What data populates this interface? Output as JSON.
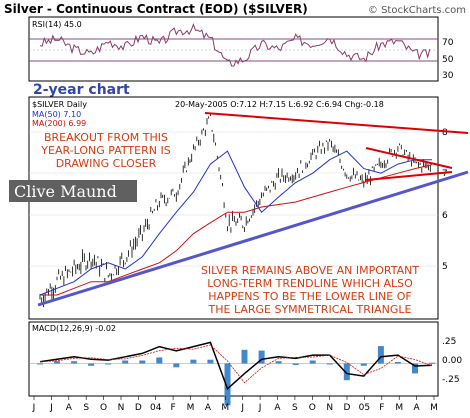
{
  "header": {
    "title": "Silver - Continuous Contract (EOD) ($SILVER)",
    "credit": "© StockCharts.com"
  },
  "rsi": {
    "label": "RSI(14) 45.0",
    "levels": [
      "70",
      "50",
      "30"
    ]
  },
  "main": {
    "two_year_label": "2-year chart",
    "ticker_label": "$SILVER Daily",
    "ohlc": "20-May-2005  O:7.12  H:7.15  L:6.92  C:6.94  Chg:-0.18",
    "legend": [
      {
        "text": "MA(50) 7.10",
        "color": "#2233cc"
      },
      {
        "text": "MA(200) 6.99",
        "color": "#cc1111"
      }
    ],
    "logo": "Clive Maund",
    "annotation_top": [
      "BREAKOUT FROM THIS",
      "YEAR-LONG PATTERN IS",
      "DRAWING CLOSER"
    ],
    "annotation_bottom": [
      "SILVER REMAINS ABOVE AN IMPORTANT",
      "LONG-TERM TRENDLINE WHICH ALSO",
      "HAPPENS TO BE THE LOWER LINE OF",
      "THE LARGE SYMMETRICAL TRIANGLE"
    ],
    "y_ticks": [
      "8",
      "7",
      "6",
      "5"
    ]
  },
  "macd": {
    "label": "MACD(12,26,9) -0.02",
    "y_ticks": [
      ".25",
      "0.00",
      "-.25"
    ]
  },
  "months": [
    "J",
    "J",
    "A",
    "S",
    "O",
    "N",
    "D",
    "04",
    "F",
    "M",
    "A",
    "M",
    "J",
    "J",
    "A",
    "S",
    "O",
    "N",
    "D",
    "05",
    "F",
    "M",
    "A",
    "M"
  ],
  "colors": {
    "price": "#000000",
    "ma50": "#2233cc",
    "ma200": "#cc1111",
    "trend_upper": "#dd0000",
    "trend_lower": "#5555cc",
    "annotation": "#d93a0f",
    "hist": "#4488cc"
  },
  "chart_data": {
    "type": "line",
    "title": "Silver - Continuous Contract (EOD) ($SILVER)",
    "x": [
      "2003-06",
      "2003-07",
      "2003-08",
      "2003-09",
      "2003-10",
      "2003-11",
      "2003-12",
      "2004-01",
      "2004-02",
      "2004-03",
      "2004-04",
      "2004-05",
      "2004-06",
      "2004-07",
      "2004-08",
      "2004-09",
      "2004-10",
      "2004-11",
      "2004-12",
      "2005-01",
      "2005-02",
      "2005-03",
      "2005-04",
      "2005-05"
    ],
    "ylim": [
      4.3,
      8.6
    ],
    "series": [
      {
        "name": "$SILVER Daily",
        "values": [
          4.55,
          4.8,
          5.0,
          5.2,
          4.9,
          5.2,
          5.6,
          6.2,
          6.4,
          7.3,
          8.1,
          5.8,
          5.8,
          6.3,
          6.7,
          6.8,
          7.2,
          7.5,
          6.8,
          6.6,
          7.0,
          7.4,
          7.0,
          6.94
        ]
      },
      {
        "name": "MA(50)",
        "values": [
          4.6,
          4.7,
          4.8,
          5.0,
          5.1,
          5.0,
          5.2,
          5.6,
          6.0,
          6.4,
          7.0,
          7.3,
          6.5,
          6.0,
          6.3,
          6.6,
          6.8,
          7.1,
          7.3,
          6.9,
          6.8,
          7.0,
          7.1,
          7.1
        ]
      },
      {
        "name": "MA(200)",
        "values": [
          4.6,
          4.6,
          4.7,
          4.8,
          4.8,
          4.9,
          5.0,
          5.1,
          5.3,
          5.6,
          5.8,
          6.0,
          6.0,
          6.1,
          6.15,
          6.2,
          6.3,
          6.4,
          6.5,
          6.6,
          6.7,
          6.8,
          6.9,
          6.99
        ]
      }
    ],
    "rsi_ylim": [
      20,
      80
    ],
    "rsi_values": [
      55,
      60,
      50,
      45,
      58,
      52,
      63,
      55,
      68,
      70,
      60,
      35,
      40,
      55,
      50,
      60,
      55,
      62,
      45,
      40,
      55,
      58,
      45,
      45
    ],
    "macd_ylim": [
      -0.35,
      0.35
    ],
    "macd_values": [
      0.02,
      0.05,
      0.08,
      0.05,
      0.04,
      0.08,
      0.12,
      0.2,
      0.15,
      0.2,
      0.25,
      -0.3,
      -0.12,
      0.05,
      0.08,
      0.06,
      0.1,
      0.1,
      -0.12,
      -0.15,
      0.08,
      0.1,
      -0.03,
      -0.02
    ]
  }
}
